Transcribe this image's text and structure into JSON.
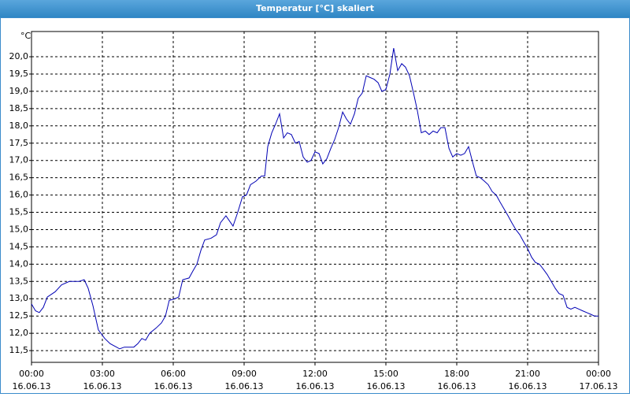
{
  "chart_data": {
    "type": "line",
    "title": "Temperatur [°C] skaliert",
    "y_label": "°C",
    "x": [
      0,
      0.17,
      0.33,
      0.5,
      0.67,
      1,
      1.27,
      1.6,
      1.83,
      2,
      2.23,
      2.4,
      2.6,
      2.83,
      3.1,
      3.33,
      3.6,
      3.73,
      3.93,
      4.17,
      4.33,
      4.5,
      4.67,
      4.83,
      5,
      5.27,
      5.5,
      5.67,
      5.83,
      6.07,
      6.23,
      6.4,
      6.67,
      6.83,
      7,
      7.17,
      7.33,
      7.6,
      7.83,
      8,
      8.23,
      8.33,
      8.53,
      8.73,
      8.93,
      9.1,
      9.27,
      9.5,
      9.73,
      9.87,
      10,
      10.17,
      10.33,
      10.5,
      10.67,
      10.83,
      11,
      11.17,
      11.33,
      11.5,
      11.67,
      11.83,
      12,
      12.17,
      12.33,
      12.5,
      12.67,
      12.83,
      13,
      13.17,
      13.33,
      13.5,
      13.67,
      13.83,
      14,
      14.17,
      14.33,
      14.5,
      14.67,
      14.83,
      15,
      15.17,
      15.33,
      15.5,
      15.67,
      15.83,
      16,
      16.17,
      16.33,
      16.5,
      16.67,
      16.83,
      17,
      17.17,
      17.33,
      17.5,
      17.67,
      17.83,
      18,
      18.17,
      18.33,
      18.5,
      18.67,
      18.83,
      19,
      19.17,
      19.33,
      19.5,
      19.67,
      19.83,
      20,
      20.17,
      20.33,
      20.5,
      20.67,
      20.83,
      21,
      21.17,
      21.33,
      21.5,
      21.67,
      21.83,
      22,
      22.17,
      22.33,
      22.5,
      22.67,
      22.83,
      23,
      23.17,
      23.33,
      23.5,
      23.67,
      23.83,
      24
    ],
    "values": [
      12.85,
      12.65,
      12.6,
      12.75,
      13.05,
      13.2,
      13.4,
      13.5,
      13.5,
      13.5,
      13.55,
      13.3,
      12.8,
      12.1,
      11.85,
      11.7,
      11.6,
      11.55,
      11.6,
      11.6,
      11.6,
      11.7,
      11.85,
      11.8,
      12.0,
      12.15,
      12.3,
      12.5,
      12.95,
      13.0,
      13.05,
      13.55,
      13.6,
      13.8,
      14.0,
      14.4,
      14.7,
      14.75,
      14.85,
      15.2,
      15.4,
      15.3,
      15.1,
      15.5,
      15.95,
      16.0,
      16.3,
      16.4,
      16.55,
      16.55,
      17.4,
      17.8,
      18.05,
      18.35,
      17.65,
      17.8,
      17.75,
      17.5,
      17.55,
      17.1,
      16.95,
      17.0,
      17.25,
      17.2,
      16.9,
      17.05,
      17.35,
      17.6,
      17.95,
      18.4,
      18.2,
      18.05,
      18.35,
      18.8,
      18.95,
      19.45,
      19.4,
      19.35,
      19.25,
      19.0,
      19.05,
      19.5,
      20.25,
      19.6,
      19.8,
      19.7,
      19.45,
      18.95,
      18.45,
      17.8,
      17.85,
      17.75,
      17.85,
      17.8,
      17.95,
      17.95,
      17.35,
      17.1,
      17.2,
      17.15,
      17.2,
      17.4,
      16.95,
      16.55,
      16.5,
      16.4,
      16.3,
      16.1,
      16.0,
      15.8,
      15.6,
      15.4,
      15.2,
      15.0,
      14.85,
      14.65,
      14.45,
      14.2,
      14.05,
      14.0,
      13.85,
      13.7,
      13.5,
      13.3,
      13.15,
      13.1,
      12.75,
      12.7,
      12.75,
      12.7,
      12.65,
      12.6,
      12.55,
      12.5,
      12.5
    ],
    "color": "#0000b4",
    "xlim": [
      0,
      24
    ],
    "xticks": [
      {
        "value": 0,
        "label": "00:00",
        "date": "16.06.13"
      },
      {
        "value": 3,
        "label": "03:00",
        "date": "16.06.13"
      },
      {
        "value": 6,
        "label": "06:00",
        "date": "16.06.13"
      },
      {
        "value": 9,
        "label": "09:00",
        "date": "16.06.13"
      },
      {
        "value": 12,
        "label": "12:00",
        "date": "16.06.13"
      },
      {
        "value": 15,
        "label": "15:00",
        "date": "16.06.13"
      },
      {
        "value": 18,
        "label": "18:00",
        "date": "16.06.13"
      },
      {
        "value": 21,
        "label": "21:00",
        "date": "16.06.13"
      },
      {
        "value": 24,
        "label": "00:00",
        "date": "17.06.13"
      }
    ],
    "ylim": [
      11.16,
      20.73
    ],
    "yticks": [
      {
        "value": 11.5,
        "label": "11,5"
      },
      {
        "value": 12,
        "label": "12,0"
      },
      {
        "value": 12.5,
        "label": "12,5"
      },
      {
        "value": 13,
        "label": "13,0"
      },
      {
        "value": 13.5,
        "label": "13,5"
      },
      {
        "value": 14,
        "label": "14,0"
      },
      {
        "value": 14.5,
        "label": "14,5"
      },
      {
        "value": 15,
        "label": "15,0"
      },
      {
        "value": 15.5,
        "label": "15,5"
      },
      {
        "value": 16,
        "label": "16,0"
      },
      {
        "value": 16.5,
        "label": "16,5"
      },
      {
        "value": 17,
        "label": "17,0"
      },
      {
        "value": 17.5,
        "label": "17,5"
      },
      {
        "value": 18,
        "label": "18,0"
      },
      {
        "value": 18.5,
        "label": "18,5"
      },
      {
        "value": 19,
        "label": "19,0"
      },
      {
        "value": 19.5,
        "label": "19,5"
      },
      {
        "value": 20,
        "label": "20,0"
      }
    ],
    "grid": true
  }
}
